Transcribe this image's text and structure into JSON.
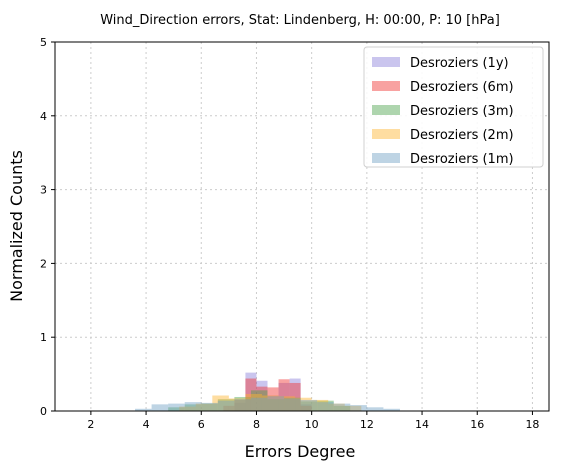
{
  "chart_data": {
    "type": "bar",
    "title": "Wind_Direction errors, Stat: Lindenberg, H: 00:00, P: 10 [hPa]",
    "xlabel": "Errors Degree",
    "ylabel": "Normalized Counts",
    "xlim": [
      0.7,
      18.6
    ],
    "ylim": [
      0,
      5
    ],
    "xticks": [
      "2",
      "4",
      "6",
      "8",
      "10",
      "12",
      "14",
      "16",
      "18"
    ],
    "xtick_values": [
      2,
      4,
      6,
      8,
      10,
      12,
      14,
      16,
      18
    ],
    "yticks": [
      "0",
      "1",
      "2",
      "3",
      "4",
      "5"
    ],
    "ytick_values": [
      0,
      1,
      2,
      3,
      4,
      5
    ],
    "grid": true,
    "legend_position": "top-right",
    "series": [
      {
        "name": "Desroziers (1y)",
        "color": "#8a7fd9",
        "bins": [
          {
            "x0": 7.2,
            "x1": 7.6,
            "y": 0.11
          },
          {
            "x0": 7.6,
            "x1": 8.0,
            "y": 0.52
          },
          {
            "x0": 8.0,
            "x1": 8.4,
            "y": 0.41
          },
          {
            "x0": 8.4,
            "x1": 8.8,
            "y": 0.21
          },
          {
            "x0": 8.8,
            "x1": 9.2,
            "y": 0.38
          },
          {
            "x0": 9.2,
            "x1": 9.6,
            "y": 0.44
          },
          {
            "x0": 9.6,
            "x1": 10.0,
            "y": 0.09
          }
        ]
      },
      {
        "name": "Desroziers (6m)",
        "color": "#f0302f",
        "bins": [
          {
            "x0": 6.8,
            "x1": 7.2,
            "y": 0.07
          },
          {
            "x0": 7.2,
            "x1": 7.6,
            "y": 0.15
          },
          {
            "x0": 7.6,
            "x1": 8.0,
            "y": 0.44
          },
          {
            "x0": 8.0,
            "x1": 8.4,
            "y": 0.33
          },
          {
            "x0": 8.4,
            "x1": 8.8,
            "y": 0.32
          },
          {
            "x0": 8.8,
            "x1": 9.2,
            "y": 0.43
          },
          {
            "x0": 9.2,
            "x1": 9.6,
            "y": 0.38
          },
          {
            "x0": 9.6,
            "x1": 10.0,
            "y": 0.07
          }
        ]
      },
      {
        "name": "Desroziers (3m)",
        "color": "#4ba24b",
        "bins": [
          {
            "x0": 4.8,
            "x1": 5.4,
            "y": 0.05
          },
          {
            "x0": 5.4,
            "x1": 6.0,
            "y": 0.09
          },
          {
            "x0": 6.0,
            "x1": 6.6,
            "y": 0.1
          },
          {
            "x0": 6.6,
            "x1": 7.2,
            "y": 0.16
          },
          {
            "x0": 7.2,
            "x1": 7.8,
            "y": 0.19
          },
          {
            "x0": 7.8,
            "x1": 8.4,
            "y": 0.28
          },
          {
            "x0": 8.4,
            "x1": 9.0,
            "y": 0.16
          },
          {
            "x0": 9.0,
            "x1": 9.6,
            "y": 0.18
          },
          {
            "x0": 9.6,
            "x1": 10.2,
            "y": 0.13
          },
          {
            "x0": 10.2,
            "x1": 10.8,
            "y": 0.14
          },
          {
            "x0": 10.8,
            "x1": 11.4,
            "y": 0.07
          }
        ]
      },
      {
        "name": "Desroziers (2m)",
        "color": "#fdb42f",
        "bins": [
          {
            "x0": 5.2,
            "x1": 5.8,
            "y": 0.06
          },
          {
            "x0": 5.8,
            "x1": 6.4,
            "y": 0.1
          },
          {
            "x0": 6.4,
            "x1": 7.0,
            "y": 0.21
          },
          {
            "x0": 7.0,
            "x1": 7.6,
            "y": 0.17
          },
          {
            "x0": 7.6,
            "x1": 8.2,
            "y": 0.23
          },
          {
            "x0": 8.2,
            "x1": 8.8,
            "y": 0.21
          },
          {
            "x0": 8.8,
            "x1": 9.4,
            "y": 0.2
          },
          {
            "x0": 9.4,
            "x1": 10.0,
            "y": 0.18
          },
          {
            "x0": 10.0,
            "x1": 10.6,
            "y": 0.15
          },
          {
            "x0": 10.6,
            "x1": 11.2,
            "y": 0.1
          },
          {
            "x0": 11.2,
            "x1": 11.8,
            "y": 0.07
          }
        ]
      },
      {
        "name": "Desroziers (1m)",
        "color": "#6f9fc4",
        "bins": [
          {
            "x0": 3.6,
            "x1": 4.2,
            "y": 0.03
          },
          {
            "x0": 4.2,
            "x1": 4.8,
            "y": 0.09
          },
          {
            "x0": 4.8,
            "x1": 5.4,
            "y": 0.1
          },
          {
            "x0": 5.4,
            "x1": 6.0,
            "y": 0.12
          },
          {
            "x0": 6.0,
            "x1": 6.6,
            "y": 0.11
          },
          {
            "x0": 6.6,
            "x1": 7.2,
            "y": 0.14
          },
          {
            "x0": 7.2,
            "x1": 7.8,
            "y": 0.16
          },
          {
            "x0": 7.8,
            "x1": 8.4,
            "y": 0.18
          },
          {
            "x0": 8.4,
            "x1": 9.0,
            "y": 0.2
          },
          {
            "x0": 9.0,
            "x1": 9.6,
            "y": 0.17
          },
          {
            "x0": 9.6,
            "x1": 10.2,
            "y": 0.15
          },
          {
            "x0": 10.2,
            "x1": 10.8,
            "y": 0.12
          },
          {
            "x0": 10.8,
            "x1": 11.4,
            "y": 0.1
          },
          {
            "x0": 11.4,
            "x1": 12.0,
            "y": 0.08
          },
          {
            "x0": 12.0,
            "x1": 12.6,
            "y": 0.05
          },
          {
            "x0": 12.6,
            "x1": 13.2,
            "y": 0.03
          }
        ]
      }
    ]
  }
}
